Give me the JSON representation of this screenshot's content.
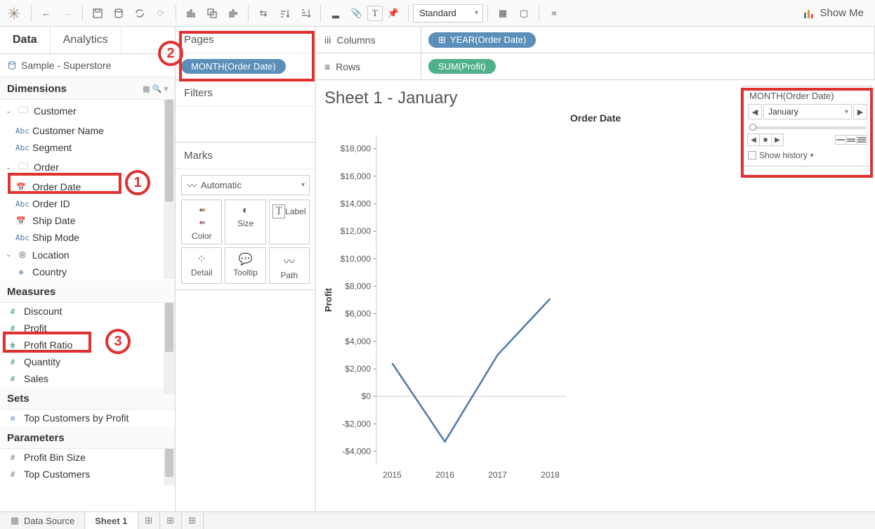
{
  "toolbar": {
    "fit_label": "Standard",
    "showme_label": "Show Me"
  },
  "sidebar": {
    "tabs": {
      "data": "Data",
      "analytics": "Analytics"
    },
    "datasource": "Sample - Superstore",
    "dimensions_label": "Dimensions",
    "measures_label": "Measures",
    "sets_label": "Sets",
    "parameters_label": "Parameters",
    "dim_folders": {
      "customer": "Customer",
      "customer_name": "Customer Name",
      "segment": "Segment",
      "order": "Order",
      "order_date": "Order Date",
      "order_id": "Order ID",
      "ship_date": "Ship Date",
      "ship_mode": "Ship Mode",
      "location": "Location",
      "country": "Country"
    },
    "measures": {
      "discount": "Discount",
      "profit": "Profit",
      "profit_ratio": "Profit Ratio",
      "quantity": "Quantity",
      "sales": "Sales"
    },
    "sets": {
      "top_customers": "Top Customers by Profit"
    },
    "parameters": {
      "profit_bin": "Profit Bin Size",
      "top_customers": "Top Customers"
    }
  },
  "shelves": {
    "pages_label": "Pages",
    "pages_pill": "MONTH(Order Date)",
    "filters_label": "Filters",
    "marks_label": "Marks",
    "marks_type": "Automatic",
    "marks_cells": {
      "color": "Color",
      "size": "Size",
      "label": "Label",
      "detail": "Detail",
      "tooltip": "Tooltip",
      "path": "Path"
    }
  },
  "rowcol": {
    "columns_label": "Columns",
    "rows_label": "Rows",
    "columns_pill": "YEAR(Order Date)",
    "rows_pill": "SUM(Profit)"
  },
  "viz": {
    "title": "Sheet 1 - January",
    "chart_title": "Order Date",
    "y_label": "Profit",
    "y_ticks": [
      "$18,000",
      "$16,000",
      "$14,000",
      "$12,000",
      "$10,000",
      "$8,000",
      "$6,000",
      "$4,000",
      "$2,000",
      "$0",
      "-$2,000",
      "-$4,000"
    ],
    "x_ticks": [
      "2015",
      "2016",
      "2017",
      "2018"
    ],
    "series": {
      "color": "#4e79a7",
      "stroke_width": 2.5,
      "points": [
        [
          0,
          2400
        ],
        [
          1,
          -3300
        ],
        [
          2,
          3000
        ],
        [
          3,
          7100
        ]
      ],
      "xlim": [
        -0.3,
        3.3
      ],
      "ylim": [
        -5000,
        19000
      ]
    }
  },
  "pages_panel": {
    "title": "MONTH(Order Date)",
    "current": "January",
    "show_history": "Show history"
  },
  "bottom": {
    "data_source": "Data Source",
    "sheet1": "Sheet 1"
  },
  "annotations": {
    "n1": "1",
    "n2": "2",
    "n3": "3"
  }
}
